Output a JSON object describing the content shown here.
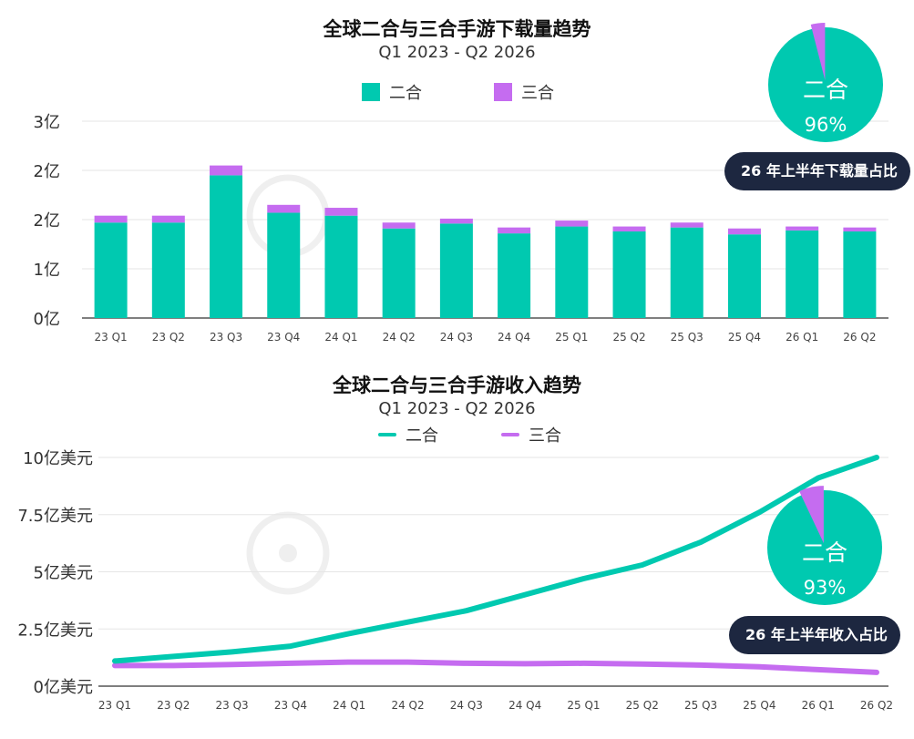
{
  "colors": {
    "two": "#00c9b0",
    "three": "#c56cf0",
    "pill_bg": "#1d2740",
    "grid": "#e6e6e6"
  },
  "chart_data": [
    {
      "type": "bar",
      "title": "全球二合与三合手游下载量趋势",
      "subtitle": "Q1 2023 - Q2 2026",
      "y_tick_labels": [
        "0亿",
        "1亿",
        "2亿",
        "2亿",
        "3亿"
      ],
      "ylim": [
        0,
        2.0
      ],
      "grid": true,
      "legend_position": "top",
      "categories": [
        "23 Q1",
        "23 Q2",
        "23 Q3",
        "23 Q4",
        "24 Q1",
        "24 Q2",
        "24 Q3",
        "24 Q4",
        "25 Q1",
        "25 Q2",
        "25 Q3",
        "25 Q4",
        "26 Q1",
        "26 Q2"
      ],
      "stacked": true,
      "series": [
        {
          "name": "二合",
          "color": "#00c9b0",
          "values": [
            0.97,
            0.97,
            1.45,
            1.07,
            1.04,
            0.91,
            0.96,
            0.86,
            0.93,
            0.88,
            0.92,
            0.85,
            0.89,
            0.88
          ]
        },
        {
          "name": "三合",
          "color": "#c56cf0",
          "values": [
            0.07,
            0.07,
            0.1,
            0.08,
            0.08,
            0.06,
            0.05,
            0.06,
            0.06,
            0.05,
            0.05,
            0.06,
            0.04,
            0.04
          ]
        }
      ],
      "inset_pie": {
        "label": "二合",
        "percent_text": "96%",
        "share": 0.96,
        "caption": "26 年上半年下载量占比"
      }
    },
    {
      "type": "line",
      "title": "全球二合与三合手游收入趋势",
      "subtitle": "Q1 2023 - Q2 2026",
      "y_tick_labels": [
        "0亿美元",
        "2.5亿美元",
        "5亿美元",
        "7.5亿美元",
        "10亿美元"
      ],
      "ylim": [
        0,
        10
      ],
      "grid": true,
      "legend_position": "top",
      "categories": [
        "23 Q1",
        "23 Q2",
        "23 Q3",
        "23 Q4",
        "24 Q1",
        "24 Q2",
        "24 Q3",
        "24 Q4",
        "25 Q1",
        "25 Q2",
        "25 Q3",
        "25 Q4",
        "26 Q1",
        "26 Q2"
      ],
      "series": [
        {
          "name": "二合",
          "color": "#00c9b0",
          "values": [
            1.1,
            1.3,
            1.5,
            1.75,
            2.3,
            2.8,
            3.3,
            4.0,
            4.7,
            5.3,
            6.3,
            7.6,
            9.1,
            10.0
          ]
        },
        {
          "name": "三合",
          "color": "#c56cf0",
          "values": [
            0.9,
            0.9,
            0.95,
            1.0,
            1.05,
            1.05,
            1.0,
            0.98,
            1.0,
            0.97,
            0.92,
            0.85,
            0.72,
            0.6
          ]
        }
      ],
      "inset_pie": {
        "label": "二合",
        "percent_text": "93%",
        "share": 0.93,
        "caption": "26 年上半年收入占比"
      }
    }
  ]
}
